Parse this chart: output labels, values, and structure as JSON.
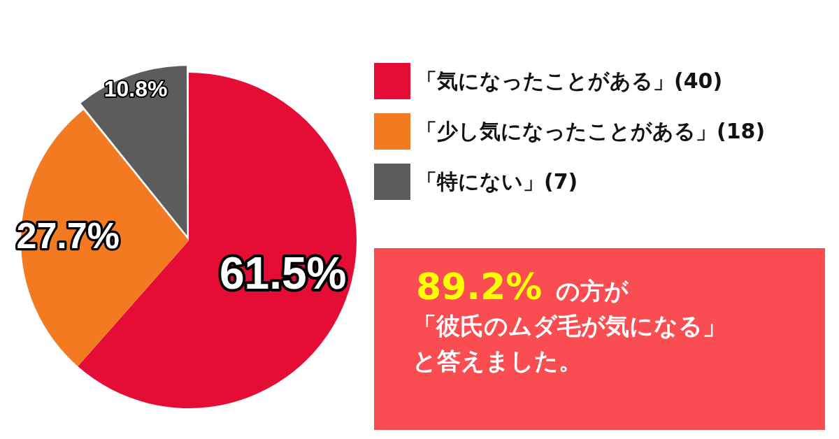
{
  "chart_data": {
    "type": "pie",
    "categories": [
      "「気になったことがある」(40)",
      "「少し気になったことがある」(18)",
      "「特にない」(7)"
    ],
    "values": [
      61.5,
      27.7,
      10.8
    ],
    "colors": [
      "#e50d36",
      "#f47a22",
      "#5c5c5c"
    ],
    "value_labels": [
      "61.5%",
      "27.7%",
      "10.8%"
    ],
    "legend": "top right",
    "annotations": [
      "89.2%",
      "の方が",
      "「彼氏のムダ毛が気になる」",
      "と答えました。"
    ]
  }
}
